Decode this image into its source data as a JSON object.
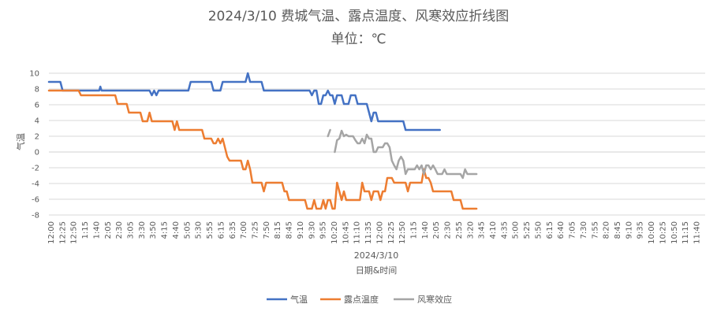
{
  "chart_data": {
    "type": "line",
    "title": "2024/3/10 费城气温、露点温度、风寒效应折线图",
    "subtitle": "单位：℃",
    "xlabel_date": "2024/3/10",
    "xlabel": "日期&时间",
    "ylabel": "气温",
    "ylim": [
      -8,
      10
    ],
    "yticks": [
      10,
      8,
      6,
      4,
      2,
      0,
      -2,
      -4,
      -6,
      -8
    ],
    "grid": true,
    "legend_position": "bottom",
    "x": [
      "12:00",
      "12:05",
      "12:10",
      "12:15",
      "12:20",
      "12:25",
      "12:30",
      "12:35",
      "12:40",
      "12:45",
      "12:50",
      "12:55",
      "1:00",
      "1:05",
      "1:10",
      "1:15",
      "1:20",
      "1:25",
      "1:30",
      "1:35",
      "1:40",
      "1:45",
      "1:50",
      "1:55",
      "2:00",
      "2:05",
      "2:10",
      "2:15",
      "2:20",
      "2:25",
      "2:30",
      "2:35",
      "2:40",
      "2:45",
      "2:50",
      "2:55",
      "3:00",
      "3:05",
      "3:10",
      "3:15",
      "3:20",
      "3:25",
      "3:30",
      "3:35",
      "3:40",
      "3:45",
      "3:50",
      "3:55",
      "4:00",
      "4:05",
      "4:10",
      "4:15",
      "4:20",
      "4:25",
      "4:30",
      "4:35",
      "4:40",
      "4:45",
      "4:50",
      "4:55",
      "5:00",
      "5:05",
      "5:10",
      "5:15",
      "5:20",
      "5:25",
      "5:30",
      "5:35",
      "5:40",
      "5:45",
      "5:50",
      "5:55",
      "6:00",
      "6:05",
      "6:10",
      "6:15",
      "6:20",
      "6:25",
      "6:30",
      "6:35",
      "6:40",
      "6:45",
      "6:50",
      "6:55",
      "7:00",
      "7:05",
      "7:10",
      "7:15",
      "7:20",
      "7:25",
      "7:30",
      "7:35",
      "7:40",
      "7:45",
      "7:50",
      "7:55",
      "8:00",
      "8:05",
      "8:10",
      "8:15",
      "8:20",
      "8:25",
      "8:30",
      "8:35",
      "8:40",
      "8:45",
      "8:50",
      "8:55",
      "9:00",
      "9:05",
      "9:10",
      "9:15",
      "9:20",
      "9:25",
      "9:30",
      "9:35",
      "9:40",
      "9:45",
      "9:50",
      "9:55",
      "10:00",
      "10:05",
      "10:10",
      "10:15",
      "10:20",
      "10:25",
      "10:30",
      "10:35",
      "10:40",
      "10:45",
      "10:50",
      "10:55",
      "11:00",
      "11:05",
      "11:10",
      "11:15",
      "11:20",
      "11:25",
      "11:30",
      "11:35",
      "11:40",
      "11:45",
      "11:50",
      "11:55",
      "12:00",
      "12:05",
      "12:10",
      "12:15",
      "12:20",
      "12:25",
      "12:30",
      "12:35",
      "12:40",
      "12:45",
      "12:50",
      "12:55",
      "1:00",
      "1:05",
      "1:10",
      "1:15",
      "1:20",
      "1:25",
      "1:30",
      "1:35",
      "1:40",
      "1:45",
      "1:50",
      "1:55",
      "2:00",
      "2:05",
      "2:10",
      "2:15",
      "2:20",
      "2:25",
      "2:30",
      "2:35",
      "2:40",
      "2:45",
      "2:50",
      "2:55",
      "3:00",
      "3:05",
      "3:10",
      "3:15",
      "3:20",
      "3:25",
      "3:30",
      "3:35",
      "3:40",
      "3:45",
      "3:50",
      "3:55",
      "4:00",
      "4:05",
      "4:10",
      "4:15",
      "4:20",
      "4:25",
      "4:30",
      "4:35",
      "4:40",
      "4:45",
      "4:50",
      "4:55",
      "5:00",
      "5:05",
      "5:10",
      "5:15",
      "5:20",
      "5:25",
      "5:30",
      "5:35",
      "5:40",
      "5:45",
      "5:50",
      "5:55",
      "6:00",
      "6:05",
      "6:10",
      "6:15",
      "6:20",
      "6:25",
      "6:30",
      "6:35",
      "6:40",
      "6:45",
      "6:50",
      "6:55",
      "7:00",
      "7:05",
      "7:10",
      "7:15",
      "7:20",
      "7:25",
      "7:30",
      "7:35",
      "7:40",
      "7:45",
      "7:50",
      "7:55",
      "8:00",
      "8:05",
      "8:10",
      "8:15",
      "8:20",
      "8:25",
      "8:30",
      "8:35",
      "8:40",
      "8:45",
      "8:50",
      "8:55",
      "9:00",
      "9:05",
      "9:10",
      "9:15",
      "9:20",
      "9:25",
      "9:30",
      "9:35",
      "9:40",
      "9:45",
      "9:50",
      "9:55",
      "10:00",
      "10:05",
      "10:10",
      "10:15",
      "10:20",
      "10:25",
      "10:30",
      "10:35",
      "10:40",
      "10:45",
      "10:50",
      "10:55",
      "11:00",
      "11:05",
      "11:10",
      "11:15",
      "11:20",
      "11:25",
      "11:30",
      "11:35",
      "11:40",
      "11:45",
      "11:50",
      "11:55"
    ],
    "x_tick_labels": [
      "12:00",
      "12:25",
      "12:50",
      "1:15",
      "1:40",
      "2:05",
      "2:30",
      "3:05",
      "3:30",
      "3:50",
      "4:15",
      "4:40",
      "5:05",
      "5:30",
      "5:55",
      "6:15",
      "6:35",
      "7:00",
      "7:25",
      "7:50",
      "8:15",
      "8:45",
      "9:10",
      "9:30",
      "9:55",
      "10:20",
      "10:45",
      "11:10",
      "11:35",
      "12:00",
      "12:25",
      "12:50",
      "1:15",
      "1:40",
      "2:05",
      "2:30",
      "2:55",
      "3:20",
      "3:45",
      "4:10",
      "4:35",
      "5:00",
      "5:25",
      "5:50",
      "6:15",
      "6:40",
      "7:05",
      "7:30",
      "7:55",
      "8:20",
      "8:45",
      "9:10",
      "9:35",
      "10:00",
      "10:25",
      "10:50",
      "11:15",
      "11:40"
    ],
    "series": [
      {
        "name": "气温",
        "color": "#4472C4",
        "points": [
          [
            0,
            8.9
          ],
          [
            5,
            8.9
          ],
          [
            6,
            7.8
          ],
          [
            20,
            7.8
          ],
          [
            22,
            7.8
          ],
          [
            22.5,
            8.3
          ],
          [
            23,
            7.8
          ],
          [
            44,
            7.8
          ],
          [
            45,
            7.2
          ],
          [
            46,
            7.8
          ],
          [
            47,
            7.2
          ],
          [
            48,
            7.8
          ],
          [
            61,
            7.8
          ],
          [
            62,
            8.9
          ],
          [
            71,
            8.9
          ],
          [
            72,
            7.8
          ],
          [
            75,
            7.8
          ],
          [
            76,
            8.9
          ],
          [
            86,
            8.9
          ],
          [
            87,
            10.0
          ],
          [
            88,
            8.9
          ],
          [
            93,
            8.9
          ],
          [
            94,
            7.8
          ],
          [
            114,
            7.8
          ],
          [
            115,
            7.2
          ],
          [
            116,
            7.8
          ],
          [
            117,
            7.8
          ],
          [
            118,
            6.1
          ],
          [
            119,
            6.1
          ],
          [
            120,
            7.2
          ],
          [
            121,
            7.2
          ],
          [
            122,
            7.8
          ],
          [
            123,
            7.2
          ],
          [
            124,
            7.2
          ],
          [
            125,
            6.1
          ],
          [
            126,
            7.2
          ],
          [
            128,
            7.2
          ],
          [
            129,
            6.1
          ],
          [
            130,
            6.1
          ],
          [
            131,
            6.1
          ],
          [
            132,
            7.2
          ],
          [
            134,
            7.2
          ],
          [
            135,
            6.1
          ],
          [
            139,
            6.1
          ],
          [
            140,
            5.0
          ],
          [
            141,
            3.9
          ],
          [
            142,
            5.0
          ],
          [
            143,
            5.0
          ],
          [
            144,
            3.9
          ],
          [
            147,
            3.9
          ],
          [
            148,
            3.9
          ],
          [
            155,
            3.9
          ],
          [
            156,
            2.8
          ],
          [
            171,
            2.8
          ]
        ]
      },
      {
        "name": "露点温度",
        "color": "#ED7D31",
        "points": [
          [
            0,
            7.8
          ],
          [
            13,
            7.8
          ],
          [
            14,
            7.2
          ],
          [
            29,
            7.2
          ],
          [
            30,
            6.1
          ],
          [
            34,
            6.1
          ],
          [
            35,
            5.0
          ],
          [
            40,
            5.0
          ],
          [
            41,
            3.9
          ],
          [
            43,
            3.9
          ],
          [
            44,
            5.0
          ],
          [
            45,
            3.9
          ],
          [
            54,
            3.9
          ],
          [
            55,
            2.8
          ],
          [
            56,
            3.9
          ],
          [
            57,
            2.8
          ],
          [
            67,
            2.8
          ],
          [
            68,
            1.7
          ],
          [
            71,
            1.7
          ],
          [
            72,
            1.1
          ],
          [
            73,
            1.1
          ],
          [
            74,
            1.7
          ],
          [
            75,
            1.1
          ],
          [
            76,
            1.7
          ],
          [
            78,
            -0.6
          ],
          [
            79,
            -1.1
          ],
          [
            84,
            -1.1
          ],
          [
            85,
            -2.2
          ],
          [
            86,
            -2.2
          ],
          [
            87,
            -1.1
          ],
          [
            88,
            -2.2
          ],
          [
            89,
            -3.9
          ],
          [
            93,
            -3.9
          ],
          [
            94,
            -5.0
          ],
          [
            95,
            -3.9
          ],
          [
            102,
            -3.9
          ],
          [
            103,
            -5.0
          ],
          [
            104,
            -5.0
          ],
          [
            105,
            -6.1
          ],
          [
            112,
            -6.1
          ],
          [
            113,
            -7.2
          ],
          [
            115,
            -7.2
          ],
          [
            116,
            -6.1
          ],
          [
            117,
            -7.2
          ],
          [
            119,
            -7.2
          ],
          [
            120,
            -6.1
          ],
          [
            121,
            -7.2
          ],
          [
            122,
            -6.1
          ],
          [
            123,
            -6.1
          ],
          [
            124,
            -7.2
          ],
          [
            125,
            -7.2
          ],
          [
            126,
            -3.9
          ],
          [
            127,
            -5.0
          ],
          [
            128,
            -6.1
          ],
          [
            129,
            -5.0
          ],
          [
            130,
            -6.1
          ],
          [
            136,
            -6.1
          ],
          [
            137,
            -3.9
          ],
          [
            138,
            -5.0
          ],
          [
            140,
            -5.0
          ],
          [
            141,
            -6.1
          ],
          [
            142,
            -5.0
          ],
          [
            144,
            -5.0
          ],
          [
            145,
            -6.1
          ],
          [
            146,
            -5.0
          ],
          [
            147,
            -5.0
          ],
          [
            148,
            -3.3
          ],
          [
            150,
            -3.3
          ],
          [
            151,
            -3.9
          ],
          [
            153,
            -3.9
          ],
          [
            154,
            -3.9
          ],
          [
            156,
            -3.9
          ],
          [
            157,
            -5.0
          ],
          [
            158,
            -3.9
          ],
          [
            163,
            -3.9
          ],
          [
            164,
            -2.2
          ],
          [
            165,
            -3.3
          ],
          [
            166,
            -3.3
          ],
          [
            167,
            -3.9
          ],
          [
            168,
            -5.0
          ],
          [
            176,
            -5.0
          ],
          [
            177,
            -6.1
          ],
          [
            180,
            -6.1
          ],
          [
            181,
            -7.2
          ],
          [
            187,
            -7.2
          ]
        ]
      },
      {
        "name": "风寒效应",
        "color": "#A5A5A5",
        "points": [
          [
            122,
            2.0
          ],
          [
            123,
            2.8
          ],
          null,
          [
            125,
            0.0
          ],
          [
            126,
            1.5
          ],
          [
            127,
            1.7
          ],
          [
            128,
            2.7
          ],
          [
            129,
            2.0
          ],
          [
            130,
            2.2
          ],
          [
            131,
            2.0
          ],
          [
            132,
            2.0
          ],
          [
            133,
            2.0
          ],
          [
            134,
            1.5
          ],
          [
            135,
            1.1
          ],
          [
            136,
            1.1
          ],
          [
            137,
            1.7
          ],
          [
            138,
            1.1
          ],
          [
            139,
            2.2
          ],
          [
            140,
            1.7
          ],
          [
            141,
            1.7
          ],
          [
            142,
            0.0
          ],
          [
            143,
            0.0
          ],
          [
            144,
            0.6
          ],
          [
            145,
            0.6
          ],
          [
            146,
            0.6
          ],
          [
            147,
            1.1
          ],
          [
            148,
            1.1
          ],
          [
            149,
            0.6
          ],
          [
            150,
            -1.1
          ],
          [
            151,
            -1.7
          ],
          [
            152,
            -2.2
          ],
          [
            153,
            -1.1
          ],
          [
            154,
            -0.6
          ],
          [
            155,
            -1.1
          ],
          [
            156,
            -2.8
          ],
          [
            157,
            -2.2
          ],
          [
            158,
            -2.2
          ],
          [
            159,
            -2.2
          ],
          [
            160,
            -2.2
          ],
          [
            161,
            -1.7
          ],
          [
            162,
            -2.2
          ],
          [
            163,
            -1.7
          ],
          [
            164,
            -2.8
          ],
          [
            165,
            -1.7
          ],
          [
            166,
            -1.7
          ],
          [
            167,
            -2.2
          ],
          [
            168,
            -1.7
          ],
          [
            169,
            -2.2
          ],
          [
            170,
            -2.8
          ],
          [
            172,
            -2.8
          ],
          [
            173,
            -2.2
          ],
          [
            174,
            -2.8
          ],
          [
            178,
            -2.8
          ],
          [
            179,
            -2.8
          ],
          [
            180,
            -2.8
          ],
          [
            181,
            -3.3
          ],
          [
            182,
            -2.2
          ],
          [
            183,
            -2.8
          ],
          [
            186,
            -2.8
          ],
          [
            187,
            -2.8
          ]
        ]
      }
    ]
  }
}
